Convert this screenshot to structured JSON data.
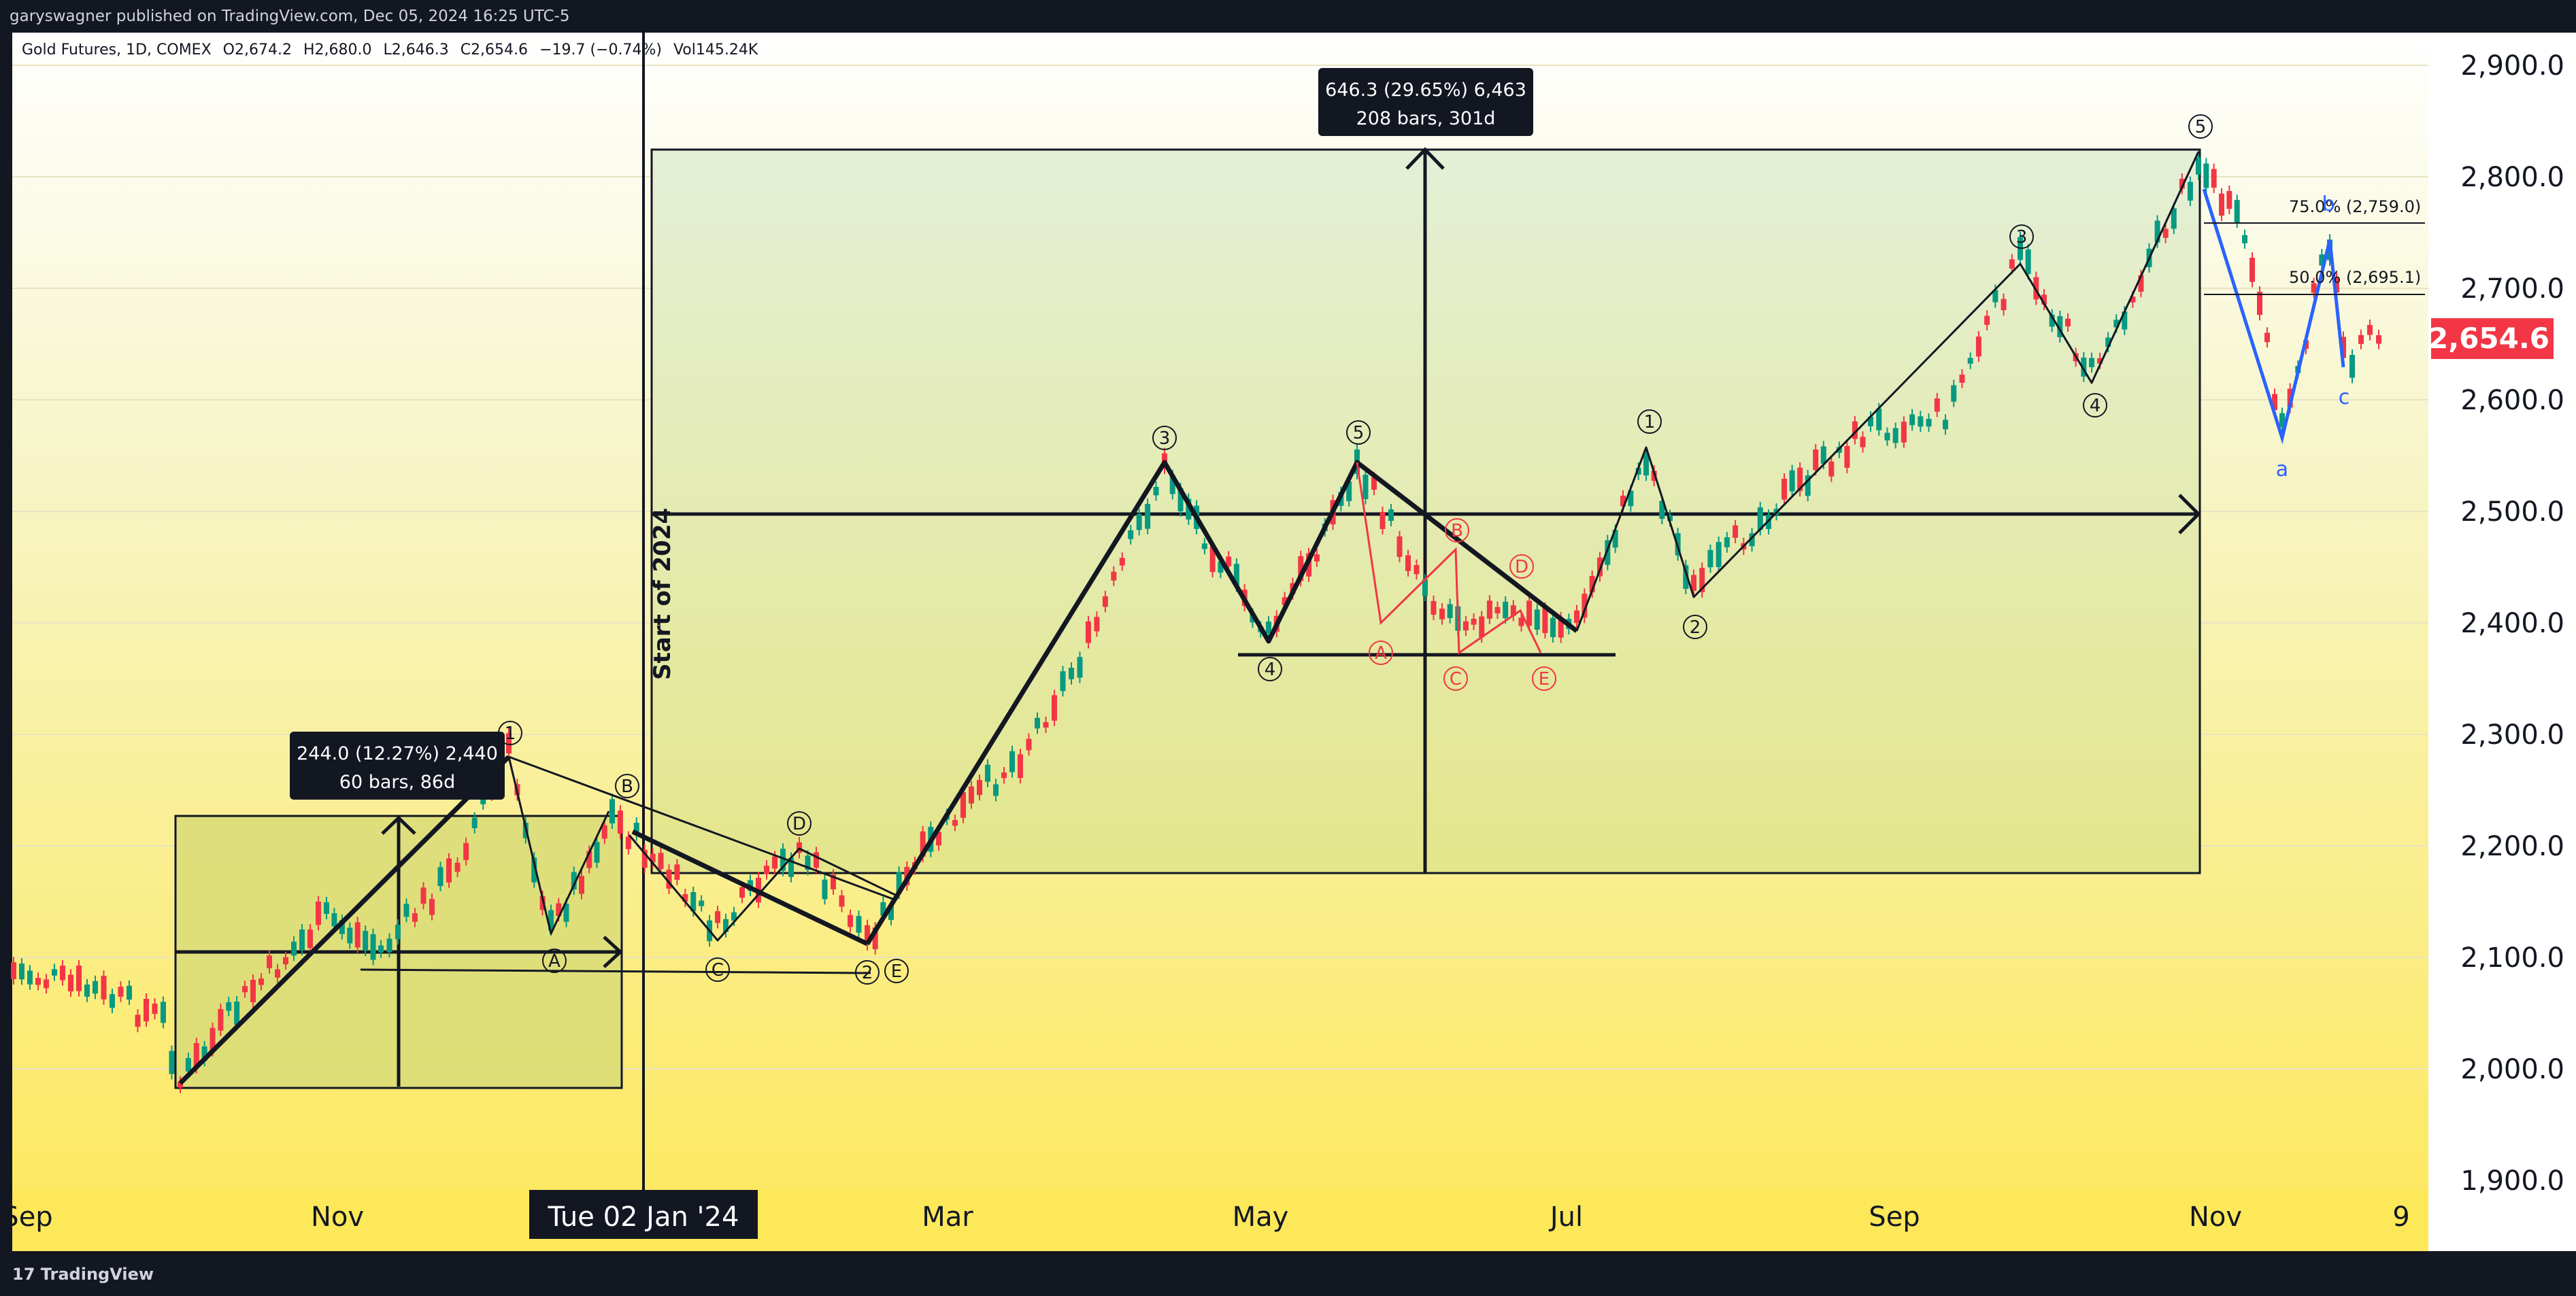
{
  "header": {
    "published": "garyswagner published on TradingView.com, Dec 05, 2024 16:25 UTC-5"
  },
  "legend": {
    "symbol": "Gold Futures, 1D, COMEX",
    "open": "O2,674.2",
    "high": "H2,680.0",
    "low": "L2,646.3",
    "close": "C2,654.6",
    "change": "−19.7 (−0.74%)",
    "volume": "Vol145.24K"
  },
  "price_axis": {
    "labels": [
      "2,900.0",
      "2,800.0",
      "2,700.0",
      "2,600.0",
      "2,500.0",
      "2,400.0",
      "2,300.0",
      "2,200.0",
      "2,100.0",
      "2,000.0",
      "1,900.0"
    ],
    "current_price": "2,654.6",
    "current_color": "#f23645"
  },
  "time_axis": {
    "labels": [
      "Sep",
      "Nov",
      "Mar",
      "May",
      "Jul",
      "Sep",
      "Nov",
      "9"
    ],
    "crosshair_label": "Tue 02 Jan '24"
  },
  "annotations": {
    "start_of_year": "Start of 2024",
    "measure_large": {
      "line1": "646.3 (29.65%) 6,463",
      "line2": "208 bars, 301d"
    },
    "measure_small": {
      "line1": "244.0 (12.27%) 2,440",
      "line2": "60 bars, 86d"
    },
    "fib_75": "75.0% (2,759.0)",
    "fib_50": "50.0% (2,695.1)"
  },
  "waves": {
    "black": [
      "1",
      "B",
      "A",
      "C",
      "D",
      "2",
      "E",
      "3",
      "4",
      "5",
      "1",
      "2",
      "3",
      "4",
      "5"
    ],
    "red": [
      "B",
      "A",
      "C",
      "D",
      "E"
    ],
    "blue": [
      "b",
      "a",
      "c"
    ]
  },
  "footer": {
    "brand": "TradingView"
  },
  "colors": {
    "up": "#089981",
    "down": "#f23645",
    "bg_top": "#eaf3df",
    "bg_bottom": "#fde85a"
  }
}
